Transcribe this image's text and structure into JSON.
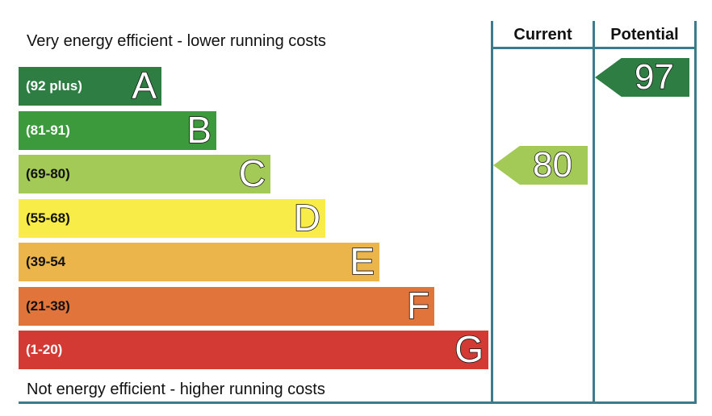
{
  "chart_data": {
    "type": "energy-rating",
    "top_caption": "Very energy efficient - lower running costs",
    "bottom_caption": "Not energy efficient - higher running costs",
    "columns": [
      "Current",
      "Potential"
    ],
    "bands": [
      {
        "range": "(92 plus)",
        "letter": "A",
        "color": "#2e7d43",
        "text_color": "#ffffff"
      },
      {
        "range": "(81-91)",
        "letter": "B",
        "color": "#3d9a3c",
        "text_color": "#ffffff"
      },
      {
        "range": "(69-80)",
        "letter": "C",
        "color": "#a3c957",
        "text_color": "#111111"
      },
      {
        "range": "(55-68)",
        "letter": "D",
        "color": "#f8ec48",
        "text_color": "#111111"
      },
      {
        "range": "(39-54",
        "letter": "E",
        "color": "#ecb54b",
        "text_color": "#111111"
      },
      {
        "range": "(21-38)",
        "letter": "F",
        "color": "#e0743a",
        "text_color": "#111111"
      },
      {
        "range": "(1-20)",
        "letter": "G",
        "color": "#d33a33",
        "text_color": "#ffffff"
      }
    ],
    "current": {
      "value": 80,
      "band": "C",
      "color": "#a3c957"
    },
    "potential": {
      "value": 97,
      "band": "A",
      "color": "#2e7d43"
    }
  }
}
